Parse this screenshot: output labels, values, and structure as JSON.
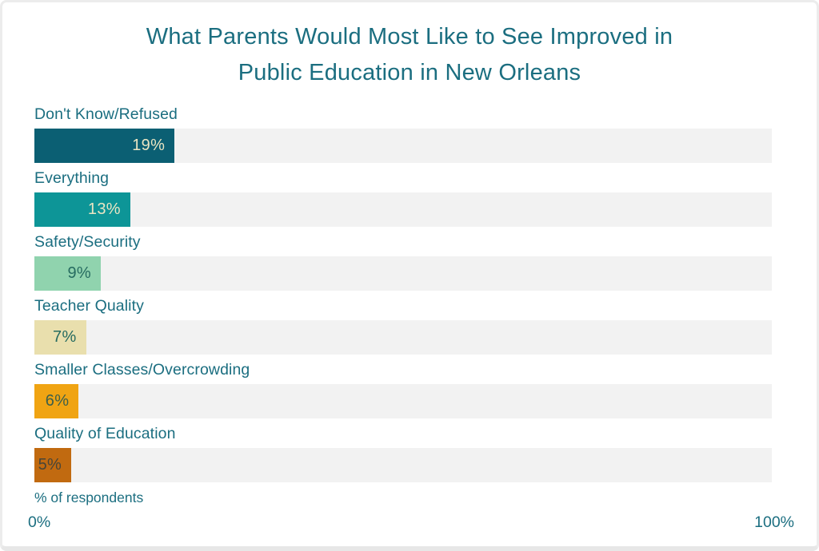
{
  "page": {
    "title_display": "What Parents Would Most Like to See Improved in\nPublic Education in New Orleans",
    "footnote": "% of respondents",
    "axis": {
      "left_tick": "0%",
      "right_tick": "100%"
    }
  },
  "chart_data": {
    "type": "bar",
    "orientation": "horizontal",
    "title": "What Parents Would Most Like to See Improved in Public Education in New Orleans",
    "xlabel": "% of respondents",
    "xlim": [
      0,
      100
    ],
    "x_ticks": [
      "0%",
      "100%"
    ],
    "grid": false,
    "legend": false,
    "categories": [
      "Don't Know/Refused",
      "Everything",
      "Safety/Security",
      "Teacher Quality",
      "Smaller Classes/Overcrowding",
      "Quality of Education"
    ],
    "values": [
      19,
      13,
      9,
      7,
      6,
      5
    ],
    "bars": [
      {
        "label": "Don't Know/Refused",
        "value": 19,
        "value_label": "19%",
        "color": "#0b5f73",
        "value_color": "#eae5c3"
      },
      {
        "label": "Everything",
        "value": 13,
        "value_label": "13%",
        "color": "#0d9597",
        "value_color": "#eae5c3"
      },
      {
        "label": "Safety/Security",
        "value": 9,
        "value_label": "9%",
        "color": "#90d3ae",
        "value_color": "#266b60"
      },
      {
        "label": "Teacher Quality",
        "value": 7,
        "value_label": "7%",
        "color": "#e9dfad",
        "value_color": "#266b60"
      },
      {
        "label": "Smaller Classes/Overcrowding",
        "value": 6,
        "value_label": "6%",
        "color": "#f0a413",
        "value_color": "#3c5f4a"
      },
      {
        "label": "Quality of Education",
        "value": 5,
        "value_label": "5%",
        "color": "#c16a10",
        "value_color": "#474538"
      }
    ],
    "colors": {
      "track": "#f2f2f2",
      "text_teal": "#1b6e80",
      "background": "#ffffff"
    }
  }
}
